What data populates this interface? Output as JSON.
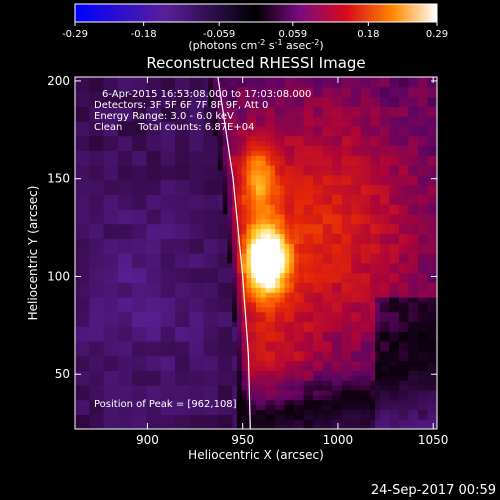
{
  "colorbar": {
    "ticks": [
      "-0.29",
      "-0.18",
      "-0.059",
      "0.059",
      "0.18",
      "0.29"
    ],
    "range": [
      -0.29,
      0.29
    ],
    "units": "(photons cm",
    "units_exp1": "-2",
    "units_mid": " s",
    "units_exp2": "-1",
    "units_mid2": " asec",
    "units_exp3": "-2",
    "units_end": ")"
  },
  "chart_data": {
    "type": "heatmap",
    "title": "Reconstructed RHESSI Image",
    "xlabel": "Heliocentric X (arcsec)",
    "ylabel": "Heliocentric Y (arcsec)",
    "xlim": [
      862,
      1052
    ],
    "ylim": [
      22,
      202
    ],
    "xticks": [
      "900",
      "950",
      "1000",
      "1050"
    ],
    "yticks": [
      "50",
      "100",
      "150",
      "200"
    ],
    "xtick_values": [
      900,
      950,
      1000,
      1050
    ],
    "ytick_values": [
      50,
      100,
      150,
      200
    ],
    "peak": {
      "x": 962,
      "y": 108
    },
    "sources": [
      {
        "x": 962,
        "y": 108,
        "amplitude": 0.29,
        "sx": 8,
        "sy": 12
      },
      {
        "x": 958,
        "y": 150,
        "amplitude": 0.14,
        "sx": 7,
        "sy": 14
      },
      {
        "x": 990,
        "y": 125,
        "amplitude": 0.1,
        "sx": 35,
        "sy": 40
      },
      {
        "x": 960,
        "y": 60,
        "amplitude": 0.06,
        "sx": 18,
        "sy": 25
      }
    ],
    "limb_curve": [
      [
        937,
        202
      ],
      [
        945,
        150
      ],
      [
        950,
        100
      ],
      [
        953,
        60
      ],
      [
        954,
        22
      ]
    ],
    "annotations": [
      "6-Apr-2015 16:53:08.000 to 17:03:08.000",
      "Detectors: 3F 5F 6F 7F 8F 9F, Att 0",
      "Energy Range: 3.0 - 6.0 keV",
      "Clean     Total counts: 6.87E+04"
    ],
    "peak_label": "Position of Peak = [962,108]"
  },
  "timestamp": "24-Sep-2017 00:59"
}
